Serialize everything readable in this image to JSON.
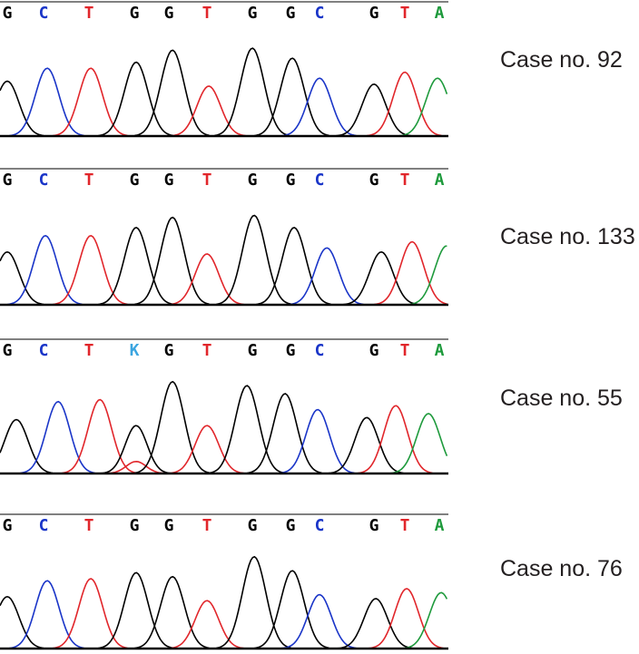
{
  "colors": {
    "G": "#000000",
    "C": "#1a35c8",
    "T": "#e1262b",
    "A": "#1e9a3c",
    "K": "#3ba5e0"
  },
  "panels": [
    {
      "case_label": "Case no. 92",
      "bases": [
        "G",
        "C",
        "T",
        "G",
        "G",
        "T",
        "G",
        "G",
        "C",
        "G",
        "T",
        "A"
      ]
    },
    {
      "case_label": "Case no. 133",
      "bases": [
        "G",
        "C",
        "T",
        "G",
        "G",
        "T",
        "G",
        "G",
        "C",
        "G",
        "T",
        "A"
      ]
    },
    {
      "case_label": "Case no. 55",
      "bases": [
        "G",
        "C",
        "T",
        "K",
        "G",
        "T",
        "G",
        "G",
        "C",
        "G",
        "T",
        "A"
      ]
    },
    {
      "case_label": "Case no. 76",
      "bases": [
        "G",
        "C",
        "T",
        "G",
        "G",
        "T",
        "G",
        "G",
        "C",
        "G",
        "T",
        "A"
      ]
    }
  ]
}
